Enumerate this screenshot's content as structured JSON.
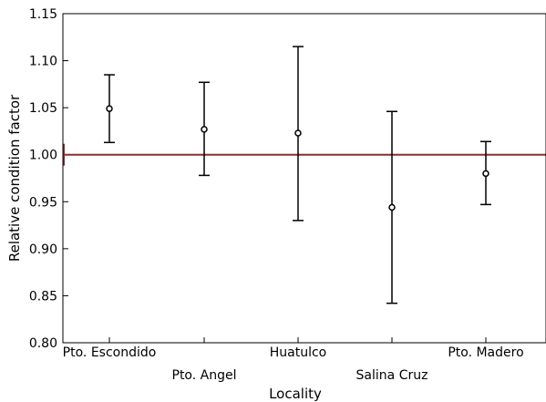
{
  "chart_data": {
    "type": "scatter",
    "title": "",
    "xlabel": "Locality",
    "ylabel": "Relative condition factor",
    "ylim": [
      0.8,
      1.15
    ],
    "yticks": [
      0.8,
      0.85,
      0.9,
      0.95,
      1.0,
      1.05,
      1.1,
      1.15
    ],
    "ytick_labels": [
      "0.80",
      "0.85",
      "0.90",
      "0.95",
      "1.00",
      "1.05",
      "1.10",
      "1.15"
    ],
    "categories": [
      "Pto. Escondido",
      "Pto. Angel",
      "Huatulco",
      "Salina Cruz",
      "Pto. Madero"
    ],
    "series": [
      {
        "values": [
          1.049,
          1.027,
          1.023,
          0.944,
          0.98
        ],
        "lower": [
          1.013,
          0.978,
          0.93,
          0.842,
          0.947
        ],
        "upper": [
          1.085,
          1.077,
          1.115,
          1.046,
          1.014
        ]
      }
    ],
    "reference_line": {
      "y": 1.0,
      "color": "#8b2e2e"
    },
    "grid": false,
    "legend": "none"
  }
}
